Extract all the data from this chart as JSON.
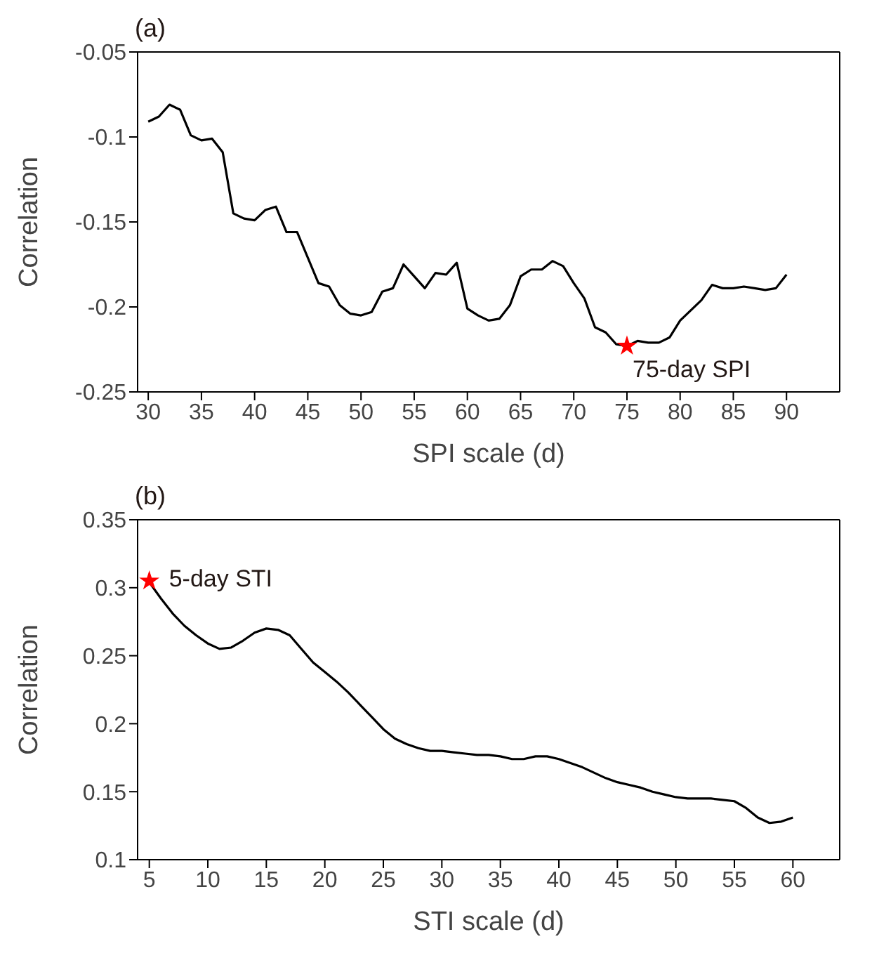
{
  "chart_data": [
    {
      "type": "line",
      "title": "(a)",
      "xlabel": "SPI scale (d)",
      "ylabel": "Correlation",
      "x": [
        30,
        31,
        32,
        33,
        34,
        35,
        36,
        37,
        38,
        39,
        40,
        41,
        42,
        43,
        44,
        45,
        46,
        47,
        48,
        49,
        50,
        51,
        52,
        53,
        54,
        55,
        56,
        57,
        58,
        59,
        60,
        61,
        62,
        63,
        64,
        65,
        66,
        67,
        68,
        69,
        70,
        71,
        72,
        73,
        74,
        75,
        76,
        77,
        78,
        79,
        80,
        81,
        82,
        83,
        84,
        85,
        86,
        87,
        88,
        89,
        90
      ],
      "series": [
        {
          "color": "#000000",
          "values": [
            -0.091,
            -0.088,
            -0.081,
            -0.084,
            -0.099,
            -0.102,
            -0.101,
            -0.109,
            -0.145,
            -0.148,
            -0.149,
            -0.143,
            -0.141,
            -0.156,
            -0.156,
            -0.171,
            -0.186,
            -0.188,
            -0.199,
            -0.204,
            -0.205,
            -0.203,
            -0.191,
            -0.189,
            -0.175,
            -0.182,
            -0.189,
            -0.18,
            -0.181,
            -0.174,
            -0.201,
            -0.205,
            -0.208,
            -0.207,
            -0.199,
            -0.182,
            -0.178,
            -0.178,
            -0.173,
            -0.176,
            -0.186,
            -0.195,
            -0.212,
            -0.215,
            -0.222,
            -0.223,
            -0.22,
            -0.221,
            -0.221,
            -0.218,
            -0.208,
            -0.202,
            -0.196,
            -0.187,
            -0.189,
            -0.189,
            -0.188,
            -0.189,
            -0.19,
            -0.189,
            -0.181
          ]
        },
        {
          "type": "scatter",
          "color": "#ff0000",
          "marker": "star",
          "x": [
            75
          ],
          "values": [
            -0.223
          ]
        }
      ],
      "annotations": [
        {
          "text": "75-day SPI",
          "x": 75,
          "y": -0.223
        }
      ],
      "xlim": [
        29,
        95
      ],
      "xticks": [
        30,
        35,
        40,
        45,
        50,
        55,
        60,
        65,
        70,
        75,
        80,
        85,
        90
      ],
      "ylim": [
        -0.25,
        -0.05
      ],
      "yticks": [
        -0.25,
        -0.2,
        -0.15,
        -0.1,
        -0.05
      ]
    },
    {
      "type": "line",
      "title": "(b)",
      "xlabel": "STI scale (d)",
      "ylabel": "Correlation",
      "x": [
        5,
        6,
        7,
        8,
        9,
        10,
        11,
        12,
        13,
        14,
        15,
        16,
        17,
        18,
        19,
        20,
        21,
        22,
        23,
        24,
        25,
        26,
        27,
        28,
        29,
        30,
        31,
        32,
        33,
        34,
        35,
        36,
        37,
        38,
        39,
        40,
        41,
        42,
        43,
        44,
        45,
        46,
        47,
        48,
        49,
        50,
        51,
        52,
        53,
        54,
        55,
        56,
        57,
        58,
        59,
        60
      ],
      "series": [
        {
          "color": "#000000",
          "values": [
            0.304,
            0.292,
            0.281,
            0.272,
            0.265,
            0.259,
            0.255,
            0.256,
            0.261,
            0.267,
            0.27,
            0.269,
            0.265,
            0.255,
            0.245,
            0.238,
            0.231,
            0.223,
            0.214,
            0.205,
            0.196,
            0.189,
            0.185,
            0.182,
            0.18,
            0.18,
            0.179,
            0.178,
            0.177,
            0.177,
            0.176,
            0.174,
            0.174,
            0.176,
            0.176,
            0.174,
            0.171,
            0.168,
            0.164,
            0.16,
            0.157,
            0.155,
            0.153,
            0.15,
            0.148,
            0.146,
            0.145,
            0.145,
            0.145,
            0.144,
            0.143,
            0.138,
            0.131,
            0.127,
            0.128,
            0.131
          ]
        },
        {
          "type": "scatter",
          "color": "#ff0000",
          "marker": "star",
          "x": [
            5
          ],
          "values": [
            0.305
          ]
        }
      ],
      "annotations": [
        {
          "text": "5-day STI",
          "x": 5,
          "y": 0.305
        }
      ],
      "xlim": [
        4,
        64
      ],
      "xticks": [
        5,
        10,
        15,
        20,
        25,
        30,
        35,
        40,
        45,
        50,
        55,
        60
      ],
      "ylim": [
        0.1,
        0.35
      ],
      "yticks": [
        0.1,
        0.15,
        0.2,
        0.25,
        0.3,
        0.35
      ]
    }
  ]
}
